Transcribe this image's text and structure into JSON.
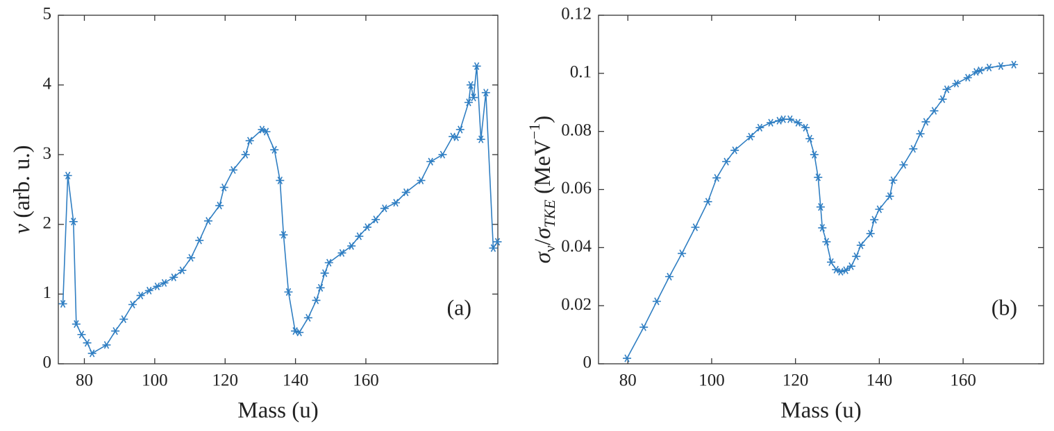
{
  "chart_data": [
    {
      "type": "line",
      "panel_label": "(a)",
      "xlabel": "Mass (u)",
      "ylabel": [
        "ν",
        " (arb. u.)"
      ],
      "color": "#2f7ec2",
      "marker": "asterisk",
      "xlim": [
        72.6,
        197.5
      ],
      "xticks": [
        80,
        100,
        120,
        140,
        160
      ],
      "ylim": [
        0,
        5
      ],
      "yticks": [
        0,
        1,
        2,
        3,
        4,
        5
      ],
      "x": [
        73.9,
        75.3,
        76.9,
        77.7,
        79.2,
        80.8,
        82.2,
        86.3,
        88.8,
        91.2,
        93.7,
        96.0,
        98.4,
        100.7,
        102.7,
        105.4,
        107.8,
        110.3,
        112.7,
        115.2,
        118.4,
        119.7,
        122.3,
        125.8,
        127.0,
        130.5,
        131.7,
        134.0,
        135.6,
        136.6,
        138.0,
        139.9,
        141.1,
        143.6,
        145.9,
        147.1,
        148.3,
        149.5,
        153.2,
        155.9,
        158.1,
        160.4,
        162.8,
        165.3,
        168.5,
        171.4,
        175.7,
        178.4,
        181.8,
        184.7,
        185.7,
        186.8,
        189.2,
        189.8,
        190.6,
        191.5,
        192.7,
        194.1,
        196.2,
        197.4
      ],
      "values": [
        0.86,
        2.7,
        2.04,
        0.57,
        0.42,
        0.3,
        0.15,
        0.27,
        0.47,
        0.64,
        0.85,
        0.98,
        1.05,
        1.11,
        1.16,
        1.24,
        1.34,
        1.52,
        1.77,
        2.05,
        2.27,
        2.53,
        2.78,
        3.0,
        3.2,
        3.36,
        3.33,
        3.07,
        2.63,
        1.85,
        1.03,
        0.47,
        0.45,
        0.66,
        0.91,
        1.09,
        1.3,
        1.45,
        1.59,
        1.69,
        1.83,
        1.96,
        2.07,
        2.23,
        2.31,
        2.46,
        2.63,
        2.9,
        3.0,
        3.26,
        3.25,
        3.36,
        3.75,
        4.0,
        3.82,
        4.27,
        3.22,
        3.89,
        1.66,
        1.75
      ]
    },
    {
      "type": "line",
      "panel_label": "(b)",
      "xlabel": "Mass (u)",
      "ylabel": [
        "σ",
        "ν",
        "/",
        "σ",
        "TKE",
        " (MeV",
        "−1",
        ")"
      ],
      "color": "#2f7ec2",
      "marker": "asterisk",
      "xlim": [
        73.0,
        179.2
      ],
      "xticks": [
        80,
        100,
        120,
        140,
        160
      ],
      "ylim": [
        0,
        0.12
      ],
      "yticks": [
        0,
        0.02,
        0.04,
        0.06,
        0.08,
        0.1,
        0.12
      ],
      "x": [
        79.8,
        83.8,
        86.9,
        89.9,
        92.9,
        96.1,
        99.1,
        101.2,
        103.5,
        105.5,
        109.3,
        111.5,
        114.1,
        116.1,
        117.1,
        118.7,
        120.6,
        122.4,
        123.4,
        124.5,
        125.4,
        126.0,
        126.4,
        127.4,
        128.5,
        129.7,
        130.8,
        132.0,
        133.3,
        134.5,
        135.6,
        137.9,
        138.8,
        140.0,
        142.5,
        143.3,
        145.8,
        148.1,
        149.8,
        151.1,
        153.1,
        155.1,
        156.1,
        158.4,
        161.1,
        163.1,
        164.1,
        166.2,
        169.0,
        172.1
      ],
      "values": [
        0.0019,
        0.0126,
        0.0215,
        0.03,
        0.038,
        0.047,
        0.0558,
        0.064,
        0.0696,
        0.0735,
        0.0782,
        0.0813,
        0.083,
        0.0837,
        0.0842,
        0.0842,
        0.083,
        0.0813,
        0.0775,
        0.072,
        0.0642,
        0.054,
        0.0468,
        0.042,
        0.035,
        0.0324,
        0.0317,
        0.0322,
        0.0336,
        0.037,
        0.0408,
        0.0448,
        0.0496,
        0.0532,
        0.0577,
        0.0632,
        0.0685,
        0.074,
        0.0792,
        0.0833,
        0.0871,
        0.0911,
        0.0945,
        0.0965,
        0.0985,
        0.1005,
        0.101,
        0.102,
        0.1025,
        0.103
      ]
    }
  ]
}
